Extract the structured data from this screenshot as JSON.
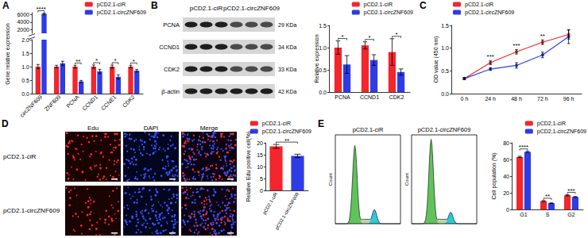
{
  "chart_data": [
    {
      "label": "A",
      "type": "bar",
      "y_label": "Gene relative expression",
      "categories": [
        "circZNF609",
        "ZNF609",
        "PCNA",
        "CCND1",
        "CCNE1",
        "CDK2"
      ],
      "series": [
        {
          "name": "pCD2.1-ciR",
          "color": "#f2262c",
          "values": [
            1.0,
            1.0,
            1.0,
            1.0,
            1.0,
            1.0
          ],
          "errors": [
            0.08,
            0.05,
            0.05,
            0.06,
            0.06,
            0.05
          ]
        },
        {
          "name": "pCD2.1-circZNF609",
          "color": "#2e3ce6",
          "values": [
            6200,
            1.12,
            0.45,
            0.82,
            0.62,
            0.85
          ],
          "errors": [
            200,
            0.08,
            0.04,
            0.08,
            0.08,
            0.05
          ]
        }
      ],
      "significance": [
        "****",
        null,
        "**",
        "*",
        "*",
        "*"
      ],
      "axis_segments": [
        {
          "ylim": [
            1000,
            6500
          ],
          "yticks": [
            2000,
            4000,
            6000
          ]
        },
        {
          "ylim": [
            0,
            2
          ],
          "yticks": [
            {
              "value": 0,
              "label": "0.0"
            },
            0.5,
            {
              "value": 1,
              "label": "1.0"
            },
            1.5,
            {
              "value": 2,
              "label": "2.0"
            }
          ]
        }
      ],
      "legend": "upper right",
      "grid": false
    },
    {
      "label": "B",
      "type": "bar",
      "y_label": "Relative expression",
      "categories": [
        "PCNA",
        "CCND1",
        "CDK2"
      ],
      "series": [
        {
          "name": "pCD2.1-ciR",
          "color": "#f2262c",
          "values": [
            1.0,
            1.05,
            0.9
          ],
          "errors": [
            0.15,
            0.08,
            0.3
          ]
        },
        {
          "name": "pCD2.1-circZNF609",
          "color": "#2e3ce6",
          "values": [
            0.62,
            0.72,
            0.45
          ],
          "errors": [
            0.2,
            0.12,
            0.07
          ]
        }
      ],
      "significance": [
        "*",
        "*",
        "*"
      ],
      "ylim": [
        0,
        1.5
      ],
      "yticks": [
        {
          "value": 0,
          "label": "0.0"
        },
        0.5,
        {
          "value": 1,
          "label": "1.0"
        },
        1.5
      ],
      "legend": "upper right",
      "grid": false
    },
    {
      "label": "C",
      "type": "line",
      "y_label": "OD value (450 nm)",
      "categories": [
        "0 h",
        "24 h",
        "48 h",
        "72 h",
        "96 h"
      ],
      "series": [
        {
          "name": "pCD2.1-ciR",
          "color": "#f2262c",
          "values": [
            0.33,
            0.68,
            0.92,
            1.13,
            1.3
          ],
          "errors": [
            0.02,
            0.04,
            0.05,
            0.05,
            0.1
          ]
        },
        {
          "name": "pCD2.1-circZNF609",
          "color": "#2e3ce6",
          "values": [
            0.33,
            0.54,
            0.62,
            0.85,
            1.25
          ],
          "errors": [
            0.02,
            0.03,
            0.06,
            0.06,
            0.15
          ]
        }
      ],
      "significance": [
        null,
        "***",
        "***",
        "**",
        null
      ],
      "ylim": [
        0,
        1.5
      ],
      "yticks": [
        {
          "value": 0,
          "label": "0.0"
        },
        0.5,
        {
          "value": 1,
          "label": "1.0"
        },
        1.5
      ],
      "marker": "circle",
      "line_style": "solid",
      "legend": "upper left",
      "grid": false
    },
    {
      "label": "D",
      "type": "bar",
      "y_label": "Relative Edu positive cell(%)",
      "categories": [
        "pCD2.1-ciR",
        "pCD2.1-circZNF609"
      ],
      "series": [
        {
          "name": "pCD2.1-ciR",
          "color": "#f2262c",
          "values": [
            18.5,
            null
          ],
          "errors": [
            0.8,
            null
          ]
        },
        {
          "name": "pCD2.1-circZNF609",
          "color": "#2e3ce6",
          "values": [
            null,
            14.5
          ],
          "errors": [
            null,
            0.7
          ]
        }
      ],
      "significance": "**",
      "stacked": true,
      "ylim": [
        0,
        20
      ],
      "yticks": [
        0,
        5,
        10,
        15,
        20
      ],
      "legend": "upper right",
      "grid": false
    },
    {
      "label": "E",
      "type": "bar",
      "y_label": "Cell population (%)",
      "categories": [
        "G1",
        "S",
        "G2"
      ],
      "series": [
        {
          "name": "pCD2.1-ciR",
          "color": "#f2262c",
          "values": [
            63,
            10,
            17
          ],
          "errors": [
            0.8,
            0.6,
            0.7
          ]
        },
        {
          "name": "pCD2.1-circZNF609",
          "color": "#2e3ce6",
          "values": [
            69,
            7.5,
            15
          ],
          "errors": [
            0.8,
            0.4,
            0.5
          ]
        }
      ],
      "significance": [
        "****",
        "**",
        "***"
      ],
      "ylim": [
        0,
        80
      ],
      "yticks": [
        0,
        20,
        40,
        60,
        80
      ],
      "legend": "upper right",
      "grid": false
    }
  ],
  "blot": {
    "headers": [
      "pCD2.1-ciR",
      "pCD2.1-circZNF609"
    ],
    "rows": [
      {
        "protein": "PCNA",
        "size": "29 KDa"
      },
      {
        "protein": "CCND1",
        "size": "34 KDa"
      },
      {
        "protein": "CDK2",
        "size": "33 KDa"
      },
      {
        "protein": "β-actin",
        "size": "42 KDa"
      }
    ]
  },
  "images": {
    "columns": [
      "Edu",
      "DAPI",
      "Merge"
    ],
    "rows": [
      "pCD2.1-ciR",
      "pCD2.1-circZNF609"
    ]
  },
  "flow": {
    "panels": [
      {
        "title": "pCD2.1-ciR"
      },
      {
        "title": "pCD2.1-circZNF609"
      }
    ],
    "y_label": "Count"
  }
}
